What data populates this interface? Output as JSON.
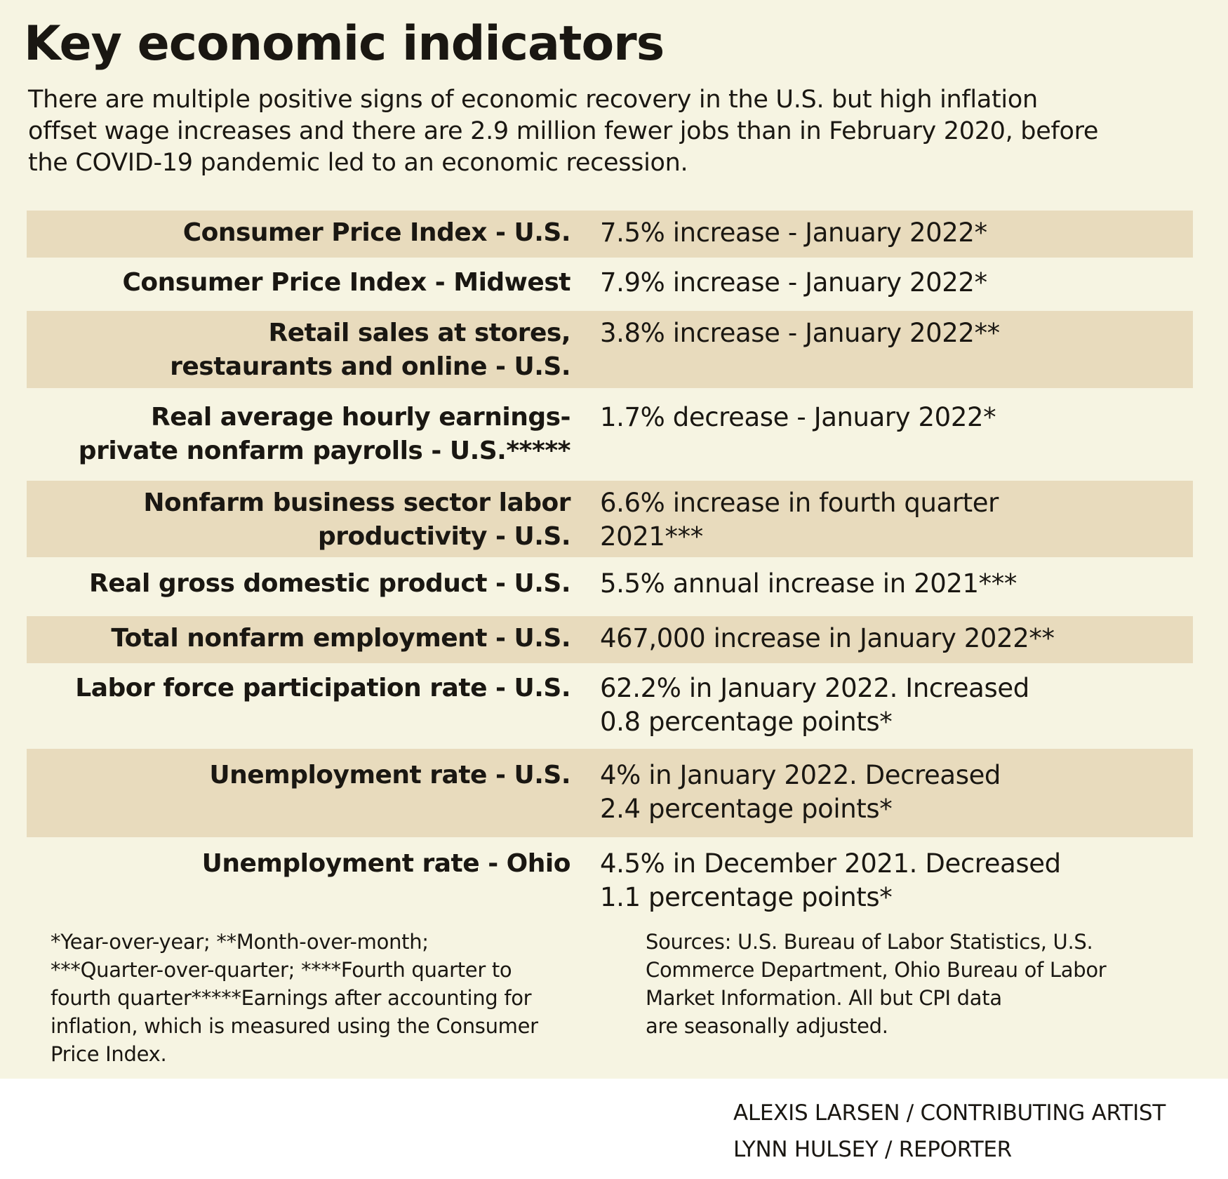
{
  "title": "Key economic indicators",
  "subtitle_lines": [
    "There are multiple positive signs of economic recovery in the U.S. but high inflation",
    "offset wage increases and there are 2.9 million fewer jobs than in February 2020, before",
    "the COVID-19 pandemic led to an economic recession."
  ],
  "rows": [
    {
      "label": [
        "Consumer Price Index - U.S."
      ],
      "value": [
        "7.5% increase - January 2022*"
      ],
      "shaded": true
    },
    {
      "label": [
        "Consumer Price Index - Midwest"
      ],
      "value": [
        "7.9% increase - January 2022*"
      ],
      "shaded": false
    },
    {
      "label": [
        "Retail sales at stores,",
        "restaurants and online - U.S."
      ],
      "value": [
        "3.8% increase - January 2022**"
      ],
      "shaded": true
    },
    {
      "label": [
        "Real average hourly earnings-",
        "private nonfarm payrolls - U.S.*****"
      ],
      "value": [
        "1.7% decrease - January 2022*"
      ],
      "shaded": false
    },
    {
      "label": [
        "Nonfarm business sector labor",
        "productivity - U.S."
      ],
      "value": [
        "6.6% increase in fourth quarter",
        "2021***"
      ],
      "shaded": true
    },
    {
      "label": [
        "Real gross domestic product - U.S."
      ],
      "value": [
        "5.5% annual increase in 2021***"
      ],
      "shaded": false
    },
    {
      "label": [
        "Total nonfarm employment - U.S."
      ],
      "value": [
        "467,000 increase in January 2022**"
      ],
      "shaded": true
    },
    {
      "label": [
        "Labor force participation rate - U.S."
      ],
      "value": [
        "62.2% in January 2022. Increased",
        "0.8 percentage points*"
      ],
      "shaded": false
    },
    {
      "label": [
        "Unemployment rate - U.S."
      ],
      "value": [
        "4% in January 2022. Decreased",
        "2.4 percentage points*"
      ],
      "shaded": true
    },
    {
      "label": [
        "Unemployment rate - Ohio"
      ],
      "value": [
        "4.5% in December 2021. Decreased",
        "1.1 percentage points*"
      ],
      "shaded": false
    }
  ],
  "footnote_lines": [
    "*Year-over-year; **Month-over-month;",
    "***Quarter-over-quarter; ****Fourth quarter to",
    "fourth quarter*****Earnings after accounting for",
    "inflation, which is measured using the Consumer",
    "Price Index."
  ],
  "source_lines": [
    "Sources: U.S. Bureau of Labor Statistics, U.S.",
    "Commerce Department, Ohio Bureau of Labor",
    "Market Information. All but CPI data",
    "are seasonally adjusted."
  ],
  "credit_lines": [
    "ALEXIS LARSEN / CONTRIBUTING ARTIST",
    "LYNN HULSEY / REPORTER"
  ],
  "colors": {
    "background": "#f6f4e2",
    "row_shade": "#e8dbbd",
    "text": "#1a1712"
  }
}
